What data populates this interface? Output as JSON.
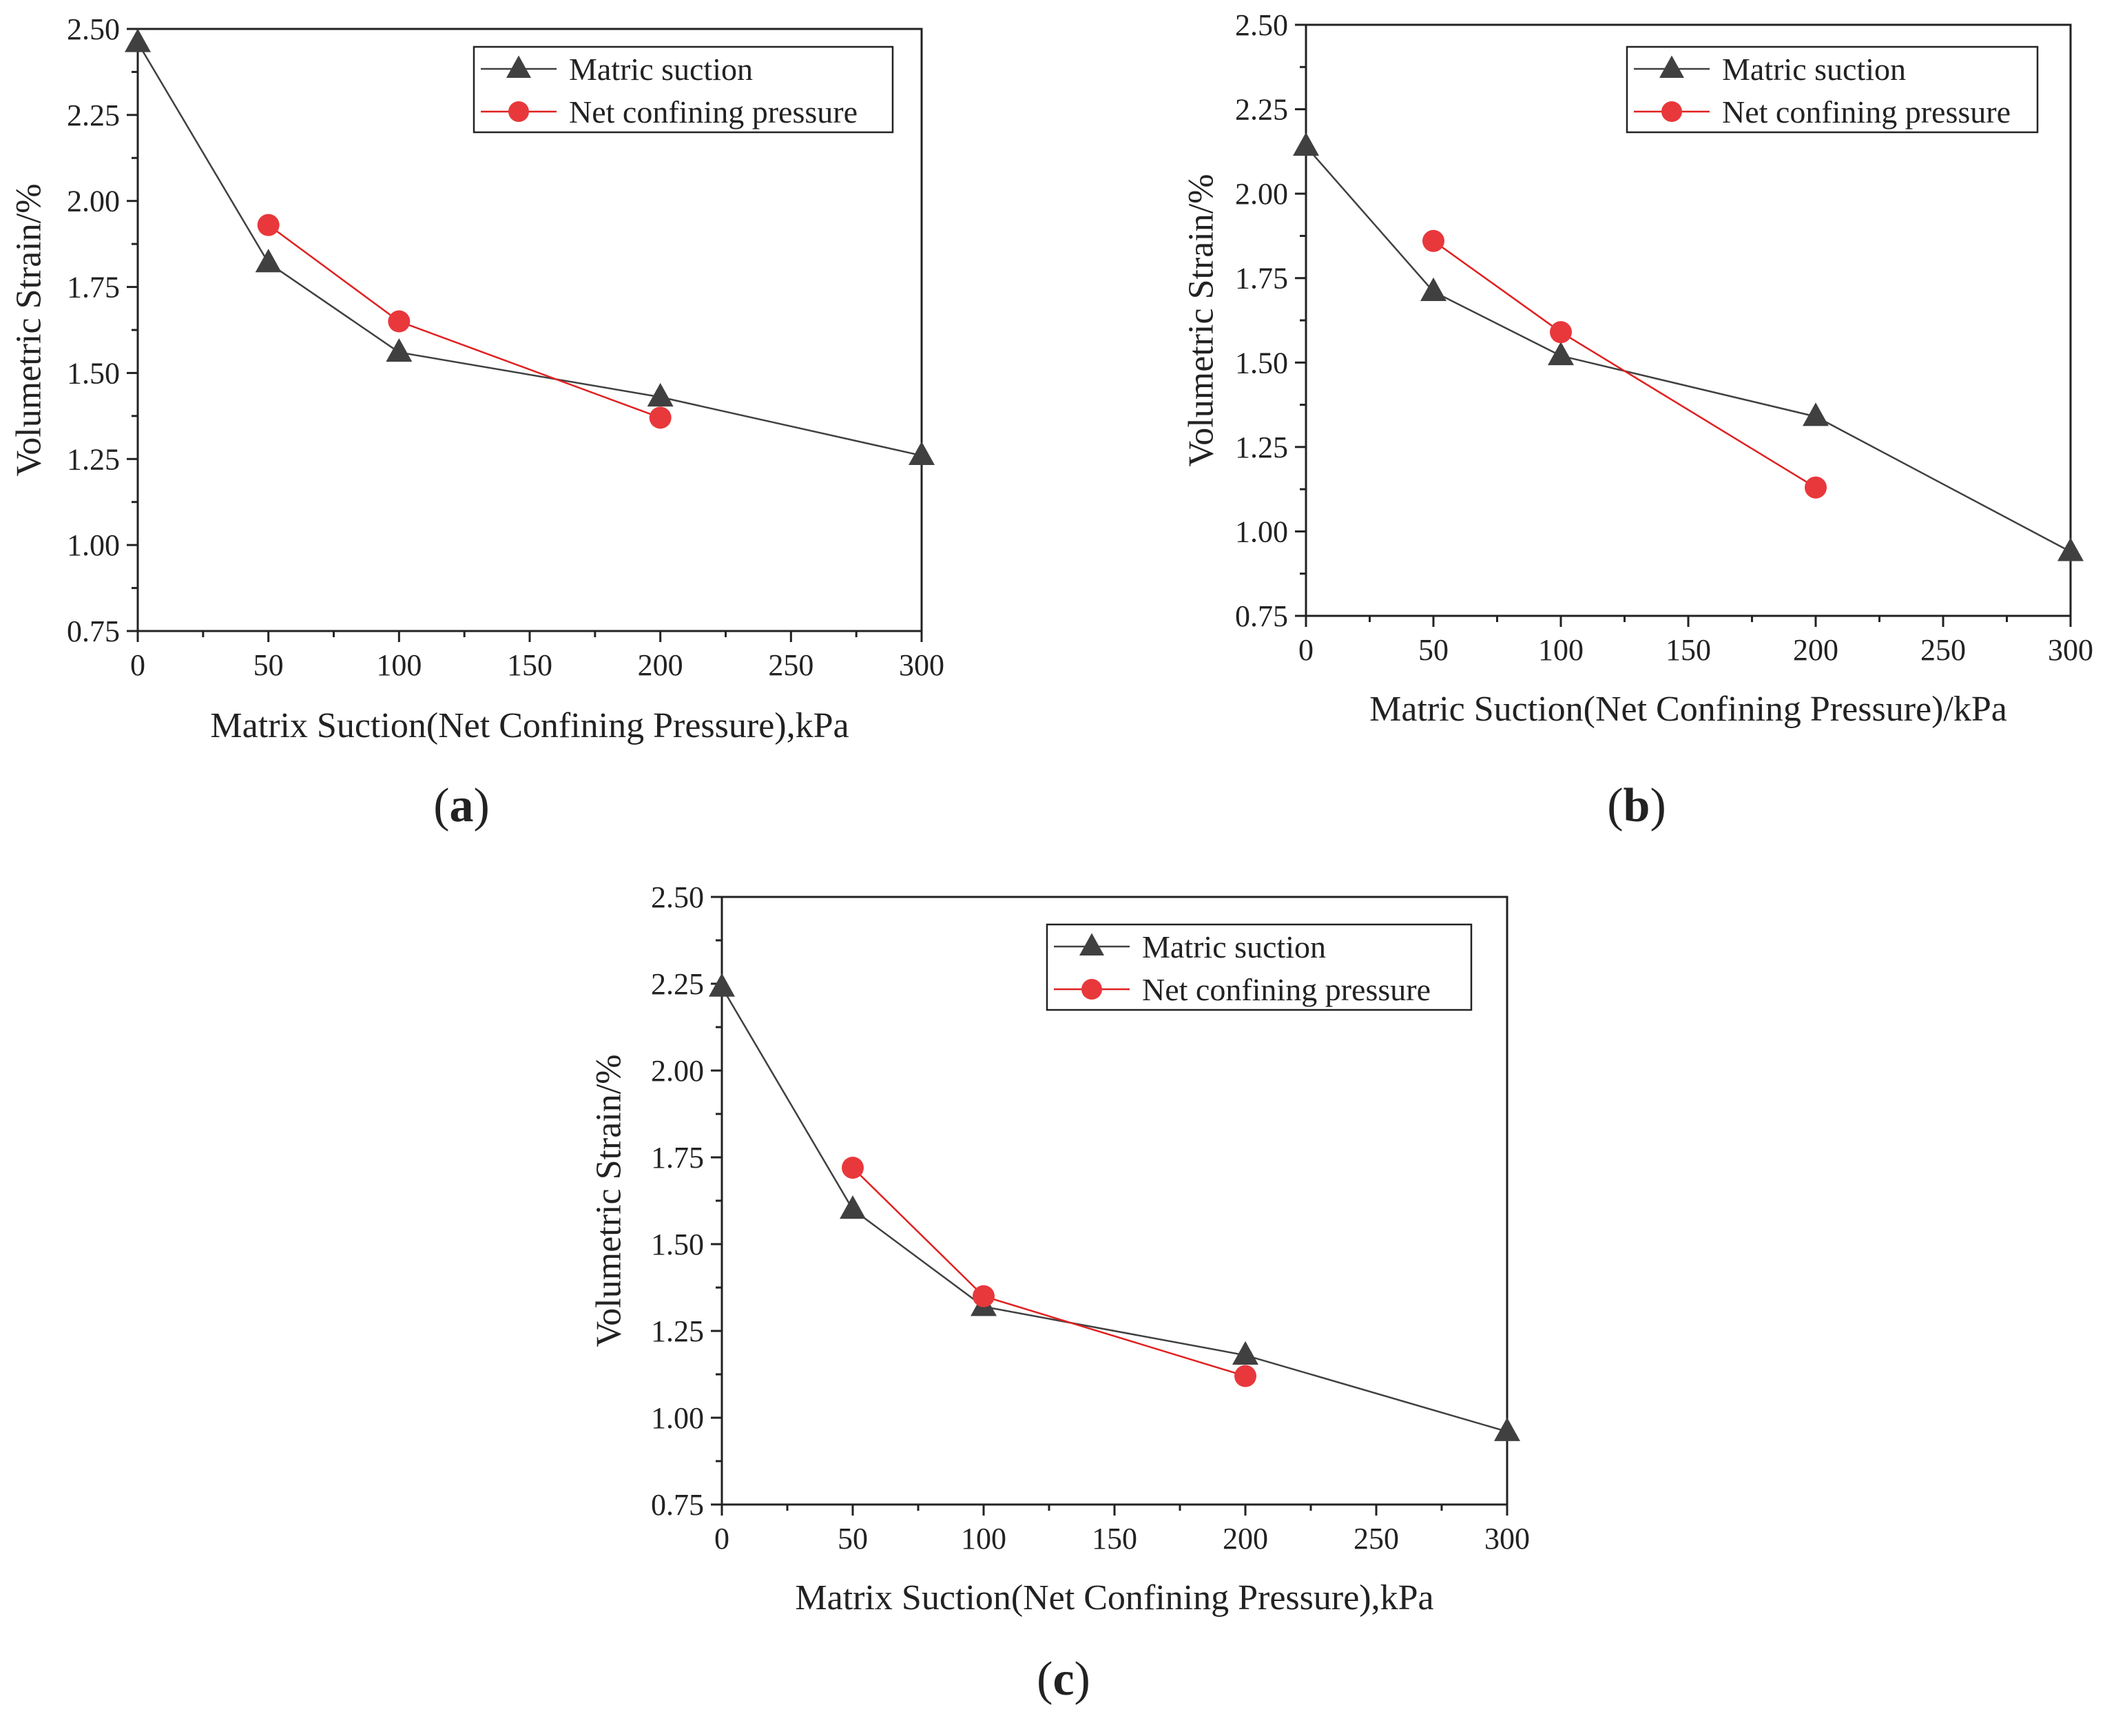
{
  "colors": {
    "matric_suction": "#404040",
    "net_confining_pressure": "#e8383c",
    "net_confining_line": "#e02020",
    "axis": "#222222"
  },
  "chart_data": [
    {
      "id": "a",
      "type": "line",
      "panel_label": "a",
      "xlabel": "Matrix Suction(Net Confining Pressure),kPa",
      "ylabel": "Volumetric Strain/%",
      "xlim": [
        0,
        300
      ],
      "ylim": [
        0.75,
        2.5
      ],
      "xticks": [
        "0",
        "50",
        "100",
        "150",
        "200",
        "250",
        "300"
      ],
      "yticks": [
        "0.75",
        "1.00",
        "1.25",
        "1.50",
        "1.75",
        "2.00",
        "2.25",
        "2.50"
      ],
      "legend_position": "top-right",
      "series": [
        {
          "name": "Matric suction",
          "marker": "triangle",
          "x": [
            0,
            50,
            100,
            200,
            300
          ],
          "y": [
            2.46,
            1.82,
            1.56,
            1.43,
            1.26
          ]
        },
        {
          "name": "Net confining pressure",
          "marker": "circle",
          "x": [
            50,
            100,
            200
          ],
          "y": [
            1.93,
            1.65,
            1.37
          ]
        }
      ]
    },
    {
      "id": "b",
      "type": "line",
      "panel_label": "b",
      "xlabel": "Matric Suction(Net Confining Pressure)/kPa",
      "ylabel": "Volumetric Strain/%",
      "xlim": [
        0,
        300
      ],
      "ylim": [
        0.75,
        2.5
      ],
      "xticks": [
        "0",
        "50",
        "100",
        "150",
        "200",
        "250",
        "300"
      ],
      "yticks": [
        "0.75",
        "1.00",
        "1.25",
        "1.50",
        "1.75",
        "2.00",
        "2.25",
        "2.50"
      ],
      "legend_position": "top-right",
      "series": [
        {
          "name": "Matric suction",
          "marker": "triangle",
          "x": [
            0,
            50,
            100,
            200,
            300
          ],
          "y": [
            2.14,
            1.71,
            1.52,
            1.34,
            0.94
          ]
        },
        {
          "name": "Net confining pressure",
          "marker": "circle",
          "x": [
            50,
            100,
            200
          ],
          "y": [
            1.86,
            1.59,
            1.13
          ]
        }
      ]
    },
    {
      "id": "c",
      "type": "line",
      "panel_label": "c",
      "xlabel": "Matrix Suction(Net Confining Pressure),kPa",
      "ylabel": "Volumetric Strain/%",
      "xlim": [
        0,
        300
      ],
      "ylim": [
        0.75,
        2.5
      ],
      "xticks": [
        "0",
        "50",
        "100",
        "150",
        "200",
        "250",
        "300"
      ],
      "yticks": [
        "0.75",
        "1.00",
        "1.25",
        "1.50",
        "1.75",
        "2.00",
        "2.25",
        "2.50"
      ],
      "legend_position": "top-right",
      "series": [
        {
          "name": "Matric suction",
          "marker": "triangle",
          "x": [
            0,
            50,
            100,
            200,
            300
          ],
          "y": [
            2.24,
            1.6,
            1.32,
            1.18,
            0.96
          ]
        },
        {
          "name": "Net confining pressure",
          "marker": "circle",
          "x": [
            50,
            100,
            200
          ],
          "y": [
            1.72,
            1.35,
            1.12
          ]
        }
      ]
    }
  ]
}
